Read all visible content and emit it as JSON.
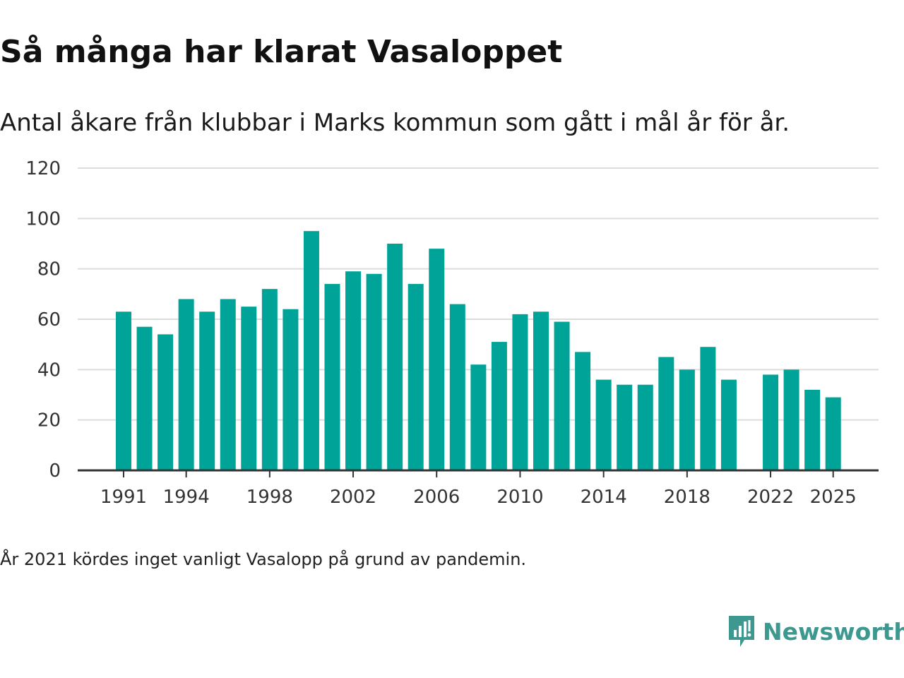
{
  "title": "Så många har klarat Vasaloppet",
  "subtitle": "Antal åkare från klubbar i Marks kommun som gått i mål år för år.",
  "footnote": "År 2021 kördes inget vanligt Vasalopp på grund av pandemin.",
  "brand": {
    "name": "Newsworthy",
    "icon": "newsworthy-logo-icon"
  },
  "colors": {
    "bar": "#00a398",
    "grid": "#dddddd",
    "axis": "#333333",
    "brand": "#3d9990"
  },
  "chart_data": {
    "type": "bar",
    "title": "Så många har klarat Vasaloppet",
    "xlabel": "",
    "ylabel": "",
    "ylim": [
      0,
      120
    ],
    "yticks": [
      0,
      20,
      40,
      60,
      80,
      100,
      120
    ],
    "xticks": [
      1991,
      1994,
      1998,
      2002,
      2006,
      2010,
      2014,
      2018,
      2022,
      2025
    ],
    "grid": true,
    "categories": [
      1991,
      1992,
      1993,
      1994,
      1995,
      1996,
      1997,
      1998,
      1999,
      2000,
      2001,
      2002,
      2003,
      2004,
      2005,
      2006,
      2007,
      2008,
      2009,
      2010,
      2011,
      2012,
      2013,
      2014,
      2015,
      2016,
      2017,
      2018,
      2019,
      2020,
      2021,
      2022,
      2023,
      2024,
      2025
    ],
    "values": [
      63,
      57,
      54,
      68,
      63,
      68,
      65,
      72,
      64,
      95,
      74,
      79,
      78,
      90,
      74,
      88,
      66,
      42,
      51,
      62,
      63,
      59,
      47,
      36,
      34,
      34,
      45,
      40,
      49,
      36,
      null,
      38,
      40,
      32,
      29
    ]
  }
}
